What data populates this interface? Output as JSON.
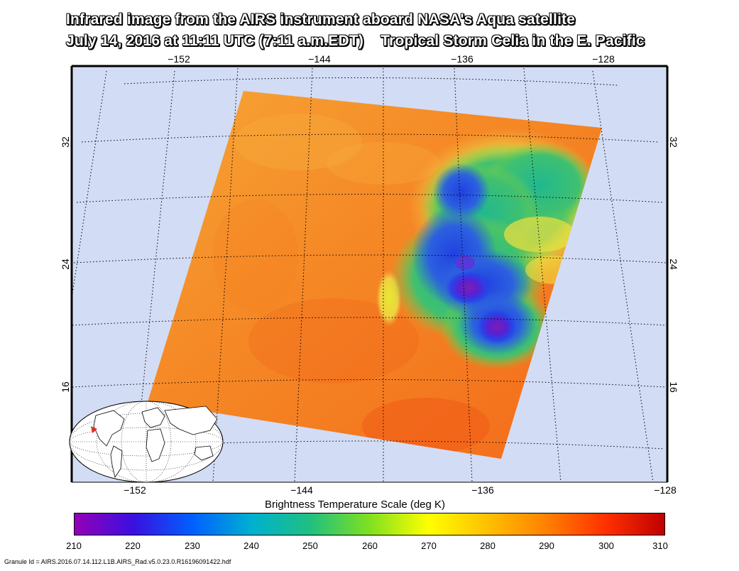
{
  "title": {
    "line1": "Infrared image from the AIRS instrument aboard NASA's Aqua satellite",
    "line2": "July 14, 2016 at 11:11 UTC (7:11 a.m.EDT)    Tropical Storm Celia in the E. Pacific"
  },
  "map": {
    "top_lon_labels": [
      "−152",
      "−144",
      "−136",
      "−128"
    ],
    "bottom_lon_labels": [
      "−152",
      "−144",
      "−136",
      "−128"
    ],
    "left_lat_labels": [
      "32",
      "24",
      "16"
    ],
    "right_lat_labels": [
      "32",
      "24",
      "16"
    ],
    "colors": {
      "ocean": "#d2dcf5",
      "swath_warm": "#f47d1c",
      "storm_cold": "#7a1fb5"
    }
  },
  "colorbar": {
    "label": "Brightness Temperature Scale (deg K)",
    "ticks": [
      "210",
      "220",
      "230",
      "240",
      "250",
      "260",
      "270",
      "280",
      "290",
      "300",
      "310"
    ],
    "range": [
      210,
      310
    ],
    "colormap": [
      "#9400b8",
      "#3a10e0",
      "#0060ff",
      "#00b0d0",
      "#20c080",
      "#80e020",
      "#ffff00",
      "#ffc000",
      "#ff8000",
      "#ff3000",
      "#c00000"
    ]
  },
  "granule_id": "Granule Id = AIRS.2016.07.14.112.L1B.AIRS_Rad.v5.0.23.0.R16196091422.hdf"
}
